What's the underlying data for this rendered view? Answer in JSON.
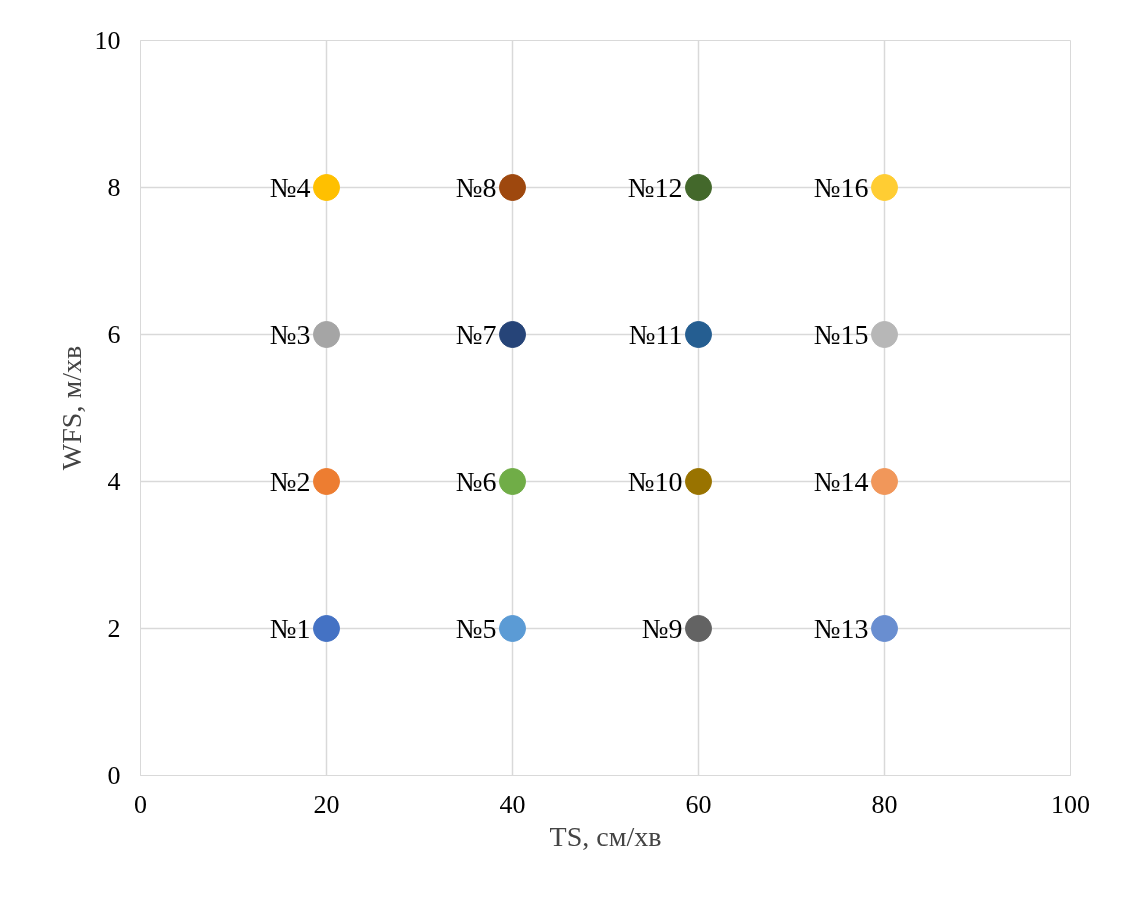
{
  "chart_data": {
    "type": "scatter",
    "xlabel": "TS, см/хв",
    "ylabel": "WFS, м/хв",
    "xlim": [
      0,
      100
    ],
    "xticks": [
      0,
      20,
      40,
      60,
      80,
      100
    ],
    "ylim": [
      0,
      10
    ],
    "yticks": [
      0,
      2,
      4,
      6,
      8,
      10
    ],
    "grid": true,
    "legend": false,
    "marker": "circle",
    "series": [
      {
        "name": "№1",
        "color": "#4472c4",
        "x": [
          20
        ],
        "values": [
          2
        ]
      },
      {
        "name": "№2",
        "color": "#ed7d31",
        "x": [
          20
        ],
        "values": [
          4
        ]
      },
      {
        "name": "№3",
        "color": "#a5a5a5",
        "x": [
          20
        ],
        "values": [
          6
        ]
      },
      {
        "name": "№4",
        "color": "#ffc000",
        "x": [
          20
        ],
        "values": [
          8
        ]
      },
      {
        "name": "№5",
        "color": "#5b9bd5",
        "x": [
          40
        ],
        "values": [
          2
        ]
      },
      {
        "name": "№6",
        "color": "#70ad47",
        "x": [
          40
        ],
        "values": [
          4
        ]
      },
      {
        "name": "№7",
        "color": "#264478",
        "x": [
          40
        ],
        "values": [
          6
        ]
      },
      {
        "name": "№8",
        "color": "#9e480e",
        "x": [
          40
        ],
        "values": [
          8
        ]
      },
      {
        "name": "№9",
        "color": "#636363",
        "x": [
          60
        ],
        "values": [
          2
        ]
      },
      {
        "name": "№10",
        "color": "#997300",
        "x": [
          60
        ],
        "values": [
          4
        ]
      },
      {
        "name": "№11",
        "color": "#255e91",
        "x": [
          60
        ],
        "values": [
          6
        ]
      },
      {
        "name": "№12",
        "color": "#43682b",
        "x": [
          60
        ],
        "values": [
          8
        ]
      },
      {
        "name": "№13",
        "color": "#698ed0",
        "x": [
          80
        ],
        "values": [
          2
        ]
      },
      {
        "name": "№14",
        "color": "#f1975a",
        "x": [
          80
        ],
        "values": [
          4
        ]
      },
      {
        "name": "№15",
        "color": "#b7b7b7",
        "x": [
          80
        ],
        "values": [
          6
        ]
      },
      {
        "name": "№16",
        "color": "#ffcd33",
        "x": [
          80
        ],
        "values": [
          8
        ]
      }
    ]
  }
}
